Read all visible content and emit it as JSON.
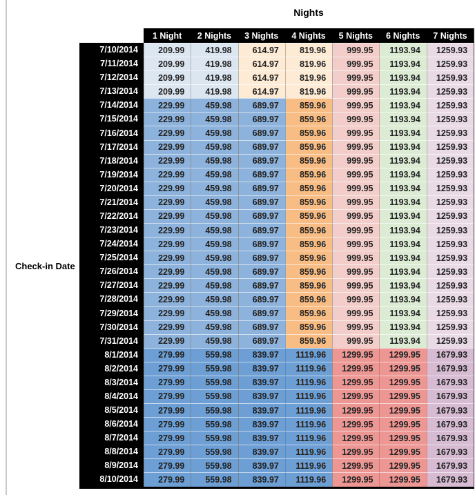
{
  "chart_data": {
    "type": "table",
    "title": "Nights",
    "row_label": "Check-in Date",
    "columns": [
      "1 Night",
      "2 Nights",
      "3 Nights",
      "4 Nights",
      "5 Nights",
      "6 Nights",
      "7 Nights"
    ],
    "rows": [
      {
        "date": "7/10/2014",
        "band": "early",
        "values": [
          209.99,
          419.98,
          614.97,
          819.96,
          999.95,
          1193.94,
          1259.93
        ]
      },
      {
        "date": "7/11/2014",
        "band": "early",
        "values": [
          209.99,
          419.98,
          614.97,
          819.96,
          999.95,
          1193.94,
          1259.93
        ]
      },
      {
        "date": "7/12/2014",
        "band": "early",
        "values": [
          209.99,
          419.98,
          614.97,
          819.96,
          999.95,
          1193.94,
          1259.93
        ]
      },
      {
        "date": "7/13/2014",
        "band": "early",
        "values": [
          209.99,
          419.98,
          614.97,
          819.96,
          999.95,
          1193.94,
          1259.93
        ]
      },
      {
        "date": "7/14/2014",
        "band": "mid",
        "values": [
          229.99,
          459.98,
          689.97,
          859.96,
          999.95,
          1193.94,
          1259.93
        ]
      },
      {
        "date": "7/15/2014",
        "band": "mid",
        "values": [
          229.99,
          459.98,
          689.97,
          859.96,
          999.95,
          1193.94,
          1259.93
        ]
      },
      {
        "date": "7/16/2014",
        "band": "mid",
        "values": [
          229.99,
          459.98,
          689.97,
          859.96,
          999.95,
          1193.94,
          1259.93
        ]
      },
      {
        "date": "7/17/2014",
        "band": "mid",
        "values": [
          229.99,
          459.98,
          689.97,
          859.96,
          999.95,
          1193.94,
          1259.93
        ]
      },
      {
        "date": "7/18/2014",
        "band": "mid",
        "values": [
          229.99,
          459.98,
          689.97,
          859.96,
          999.95,
          1193.94,
          1259.93
        ]
      },
      {
        "date": "7/19/2014",
        "band": "mid",
        "values": [
          229.99,
          459.98,
          689.97,
          859.96,
          999.95,
          1193.94,
          1259.93
        ]
      },
      {
        "date": "7/20/2014",
        "band": "mid",
        "values": [
          229.99,
          459.98,
          689.97,
          859.96,
          999.95,
          1193.94,
          1259.93
        ]
      },
      {
        "date": "7/21/2014",
        "band": "mid",
        "values": [
          229.99,
          459.98,
          689.97,
          859.96,
          999.95,
          1193.94,
          1259.93
        ]
      },
      {
        "date": "7/22/2014",
        "band": "mid",
        "values": [
          229.99,
          459.98,
          689.97,
          859.96,
          999.95,
          1193.94,
          1259.93
        ]
      },
      {
        "date": "7/23/2014",
        "band": "mid",
        "values": [
          229.99,
          459.98,
          689.97,
          859.96,
          999.95,
          1193.94,
          1259.93
        ]
      },
      {
        "date": "7/24/2014",
        "band": "mid",
        "values": [
          229.99,
          459.98,
          689.97,
          859.96,
          999.95,
          1193.94,
          1259.93
        ]
      },
      {
        "date": "7/25/2014",
        "band": "mid",
        "values": [
          229.99,
          459.98,
          689.97,
          859.96,
          999.95,
          1193.94,
          1259.93
        ]
      },
      {
        "date": "7/26/2014",
        "band": "mid",
        "values": [
          229.99,
          459.98,
          689.97,
          859.96,
          999.95,
          1193.94,
          1259.93
        ]
      },
      {
        "date": "7/27/2014",
        "band": "mid",
        "values": [
          229.99,
          459.98,
          689.97,
          859.96,
          999.95,
          1193.94,
          1259.93
        ]
      },
      {
        "date": "7/28/2014",
        "band": "mid",
        "values": [
          229.99,
          459.98,
          689.97,
          859.96,
          999.95,
          1193.94,
          1259.93
        ]
      },
      {
        "date": "7/29/2014",
        "band": "mid",
        "values": [
          229.99,
          459.98,
          689.97,
          859.96,
          999.95,
          1193.94,
          1259.93
        ]
      },
      {
        "date": "7/30/2014",
        "band": "mid",
        "values": [
          229.99,
          459.98,
          689.97,
          859.96,
          999.95,
          1193.94,
          1259.93
        ]
      },
      {
        "date": "7/31/2014",
        "band": "mid",
        "values": [
          229.99,
          459.98,
          689.97,
          859.96,
          999.95,
          1193.94,
          1259.93
        ]
      },
      {
        "date": "8/1/2014",
        "band": "peak",
        "values": [
          279.99,
          559.98,
          839.97,
          1119.96,
          1299.95,
          1299.95,
          1679.93
        ]
      },
      {
        "date": "8/2/2014",
        "band": "peak",
        "values": [
          279.99,
          559.98,
          839.97,
          1119.96,
          1299.95,
          1299.95,
          1679.93
        ]
      },
      {
        "date": "8/3/2014",
        "band": "peak",
        "values": [
          279.99,
          559.98,
          839.97,
          1119.96,
          1299.95,
          1299.95,
          1679.93
        ]
      },
      {
        "date": "8/4/2014",
        "band": "peak",
        "values": [
          279.99,
          559.98,
          839.97,
          1119.96,
          1299.95,
          1299.95,
          1679.93
        ]
      },
      {
        "date": "8/5/2014",
        "band": "peak",
        "values": [
          279.99,
          559.98,
          839.97,
          1119.96,
          1299.95,
          1299.95,
          1679.93
        ]
      },
      {
        "date": "8/6/2014",
        "band": "peak",
        "values": [
          279.99,
          559.98,
          839.97,
          1119.96,
          1299.95,
          1299.95,
          1679.93
        ]
      },
      {
        "date": "8/7/2014",
        "band": "peak",
        "values": [
          279.99,
          559.98,
          839.97,
          1119.96,
          1299.95,
          1299.95,
          1679.93
        ]
      },
      {
        "date": "8/8/2014",
        "band": "peak",
        "values": [
          279.99,
          559.98,
          839.97,
          1119.96,
          1299.95,
          1299.95,
          1679.93
        ]
      },
      {
        "date": "8/9/2014",
        "band": "peak",
        "values": [
          279.99,
          559.98,
          839.97,
          1119.96,
          1299.95,
          1299.95,
          1679.93
        ]
      },
      {
        "date": "8/10/2014",
        "band": "peak",
        "values": [
          279.99,
          559.98,
          839.97,
          1119.96,
          1299.95,
          1299.95,
          1679.93
        ]
      }
    ]
  },
  "colors": {
    "header_bg": "#000000",
    "header_text": "#ffffff",
    "value_text": "#212121",
    "bands": {
      "early": [
        "#dce6f1",
        "#dce6f1",
        "#fdebd5",
        "#fdebd5",
        "#f2cdca",
        "#dcecd4",
        "#e9dae6"
      ],
      "mid": [
        "#8db2db",
        "#8db2db",
        "#8db2db",
        "#f8bd84",
        "#f2cdca",
        "#dcecd4",
        "#e9dae6"
      ],
      "peak": [
        "#6d9fd4",
        "#6d9fd4",
        "#6d9fd4",
        "#6d9fd4",
        "#ec9794",
        "#ec9794",
        "#d6bbd3"
      ]
    }
  }
}
